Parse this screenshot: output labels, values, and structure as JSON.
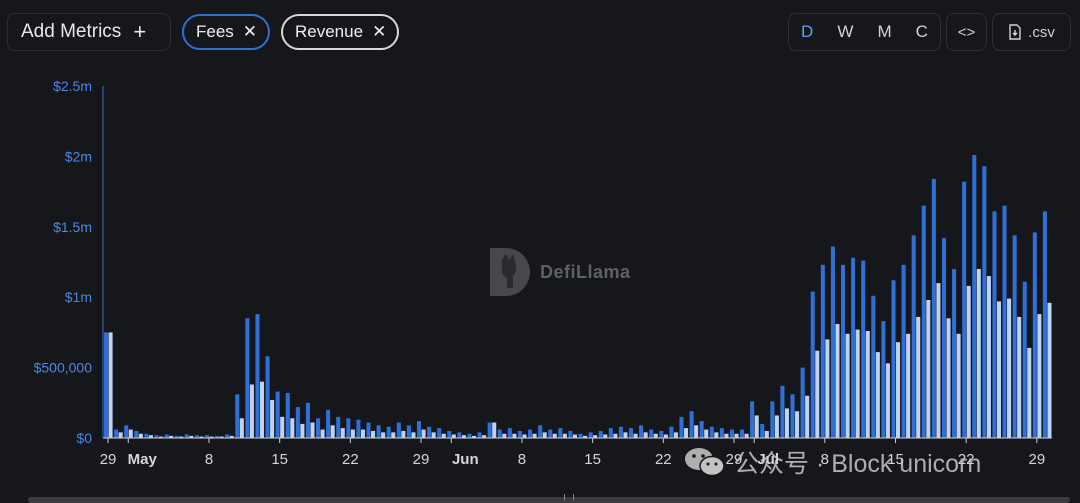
{
  "toolbar": {
    "add_metrics_label": "Add Metrics",
    "add_metrics_plus": "+",
    "chips": [
      {
        "label": "Fees",
        "close": "✕",
        "color": "#2f6fd6"
      },
      {
        "label": "Revenue",
        "close": "✕",
        "color": "#d9d9d9"
      }
    ],
    "periods": [
      "D",
      "W",
      "M",
      "C"
    ],
    "active_period": "D",
    "embed_label": "<>",
    "csv_label": ".csv"
  },
  "watermark": {
    "text": "DefiLlama"
  },
  "wechat_watermark": {
    "text": "公众号 · Block unicorn"
  },
  "chart_data": {
    "type": "bar",
    "y_ticks": [
      "$0",
      "$500,000",
      "$1m",
      "$1.5m",
      "$2m",
      "$2.5m"
    ],
    "ylim": [
      0,
      2500000
    ],
    "x_tick_labels": [
      {
        "label": "29",
        "index": 0,
        "bold": false
      },
      {
        "label": "May",
        "index": 2,
        "bold": true
      },
      {
        "label": "8",
        "index": 10,
        "bold": false
      },
      {
        "label": "15",
        "index": 17,
        "bold": false
      },
      {
        "label": "22",
        "index": 24,
        "bold": false
      },
      {
        "label": "29",
        "index": 31,
        "bold": false
      },
      {
        "label": "Jun",
        "index": 34,
        "bold": true
      },
      {
        "label": "8",
        "index": 41,
        "bold": false
      },
      {
        "label": "15",
        "index": 48,
        "bold": false
      },
      {
        "label": "22",
        "index": 55,
        "bold": false
      },
      {
        "label": "29",
        "index": 62,
        "bold": false
      },
      {
        "label": "Jul",
        "index": 64,
        "bold": true
      },
      {
        "label": "8",
        "index": 71,
        "bold": false
      },
      {
        "label": "15",
        "index": 78,
        "bold": false
      },
      {
        "label": "22",
        "index": 85,
        "bold": false
      },
      {
        "label": "29",
        "index": 92,
        "bold": false
      }
    ],
    "series": [
      {
        "name": "Fees",
        "color": "#2f6fd6",
        "values": [
          750000,
          60000,
          90000,
          50000,
          30000,
          20000,
          25000,
          15000,
          25000,
          20000,
          20000,
          15000,
          25000,
          310000,
          850000,
          880000,
          580000,
          330000,
          320000,
          220000,
          250000,
          140000,
          200000,
          150000,
          140000,
          130000,
          110000,
          90000,
          80000,
          110000,
          90000,
          120000,
          80000,
          70000,
          50000,
          40000,
          30000,
          40000,
          110000,
          60000,
          70000,
          50000,
          60000,
          90000,
          60000,
          70000,
          50000,
          30000,
          40000,
          50000,
          70000,
          80000,
          70000,
          90000,
          60000,
          50000,
          80000,
          150000,
          190000,
          120000,
          80000,
          70000,
          60000,
          60000,
          260000,
          100000,
          260000,
          370000,
          310000,
          500000,
          1040000,
          1230000,
          1360000,
          1230000,
          1280000,
          1260000,
          1010000,
          830000,
          1120000,
          1230000,
          1440000,
          1650000,
          1840000,
          1420000,
          1200000,
          1820000,
          2010000,
          1930000,
          1610000,
          1650000,
          1440000,
          1110000,
          1460000,
          1610000
        ]
      },
      {
        "name": "Revenue",
        "color": "#bcd3f5",
        "values": [
          750000,
          40000,
          60000,
          30000,
          20000,
          10000,
          15000,
          10000,
          15000,
          10000,
          10000,
          10000,
          15000,
          140000,
          380000,
          400000,
          270000,
          150000,
          140000,
          100000,
          110000,
          60000,
          90000,
          70000,
          60000,
          60000,
          50000,
          40000,
          40000,
          50000,
          40000,
          60000,
          40000,
          30000,
          25000,
          20000,
          15000,
          20000,
          110000,
          30000,
          30000,
          25000,
          30000,
          40000,
          30000,
          30000,
          25000,
          15000,
          20000,
          25000,
          30000,
          40000,
          30000,
          40000,
          30000,
          25000,
          40000,
          70000,
          90000,
          60000,
          40000,
          30000,
          30000,
          30000,
          160000,
          50000,
          160000,
          210000,
          190000,
          300000,
          620000,
          700000,
          810000,
          740000,
          770000,
          760000,
          610000,
          530000,
          680000,
          740000,
          860000,
          980000,
          1100000,
          850000,
          740000,
          1080000,
          1200000,
          1150000,
          970000,
          990000,
          860000,
          640000,
          880000,
          960000
        ]
      }
    ]
  }
}
